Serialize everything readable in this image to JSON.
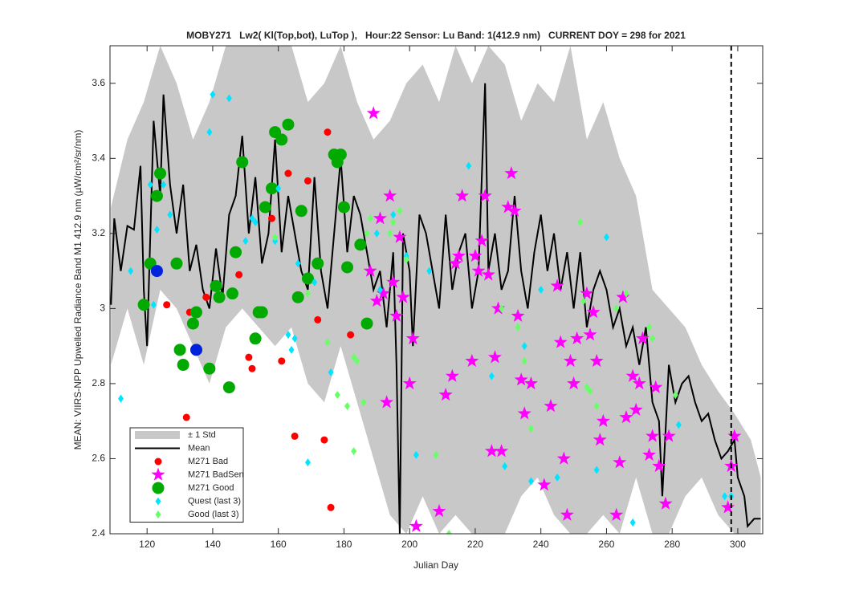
{
  "chart_data": {
    "type": "scatter",
    "title": "MOBY271   Lw2( Kl(Top,bot), LuTop ),   Hour:22 Sensor: Lu Band: 1(412.9 nm)   CURRENT DOY = 298 for 2021",
    "xlabel": "Julian Day",
    "ylabel": "MEAN: VIIRS-NPP Upwelled Radiance Band M1 412.9 nm (µW/cm²/sr/nm)",
    "xlim": [
      108.7,
      307.6
    ],
    "ylim": [
      2.4,
      3.7
    ],
    "xticks": [
      120,
      140,
      160,
      180,
      200,
      220,
      240,
      260,
      280,
      300
    ],
    "yticks": [
      2.4,
      2.6,
      2.8,
      3,
      3.2,
      3.4,
      3.6
    ],
    "vline": 298,
    "series": [
      {
        "name": "± 1 Std",
        "marker": "area",
        "color": "#c8c8c8",
        "x": [
          109,
          114,
          119,
          124,
          129,
          134,
          139,
          144,
          149,
          154,
          159,
          164,
          169,
          174,
          179,
          184,
          189,
          194,
          199,
          204,
          209,
          214,
          219,
          224,
          229,
          234,
          239,
          244,
          249,
          254,
          259,
          264,
          269,
          274,
          279,
          284,
          289,
          294,
          299,
          304,
          307
        ],
        "upper": [
          3.27,
          3.45,
          3.55,
          3.7,
          3.6,
          3.45,
          3.55,
          3.7,
          3.7,
          3.7,
          3.7,
          3.7,
          3.55,
          3.6,
          3.7,
          3.55,
          3.45,
          3.5,
          3.6,
          3.65,
          3.55,
          3.7,
          3.6,
          3.7,
          3.65,
          3.5,
          3.6,
          3.55,
          3.7,
          3.45,
          3.55,
          3.4,
          3.3,
          3.05,
          3.0,
          2.95,
          2.85,
          2.78,
          2.72,
          2.65,
          2.55
        ],
        "lower": [
          2.85,
          3.0,
          2.85,
          3.05,
          3.0,
          2.9,
          2.8,
          2.95,
          3.0,
          2.95,
          2.9,
          2.95,
          2.8,
          2.75,
          2.9,
          2.75,
          2.6,
          2.45,
          2.4,
          2.5,
          2.4,
          2.45,
          2.4,
          2.4,
          2.4,
          2.5,
          2.55,
          2.45,
          2.4,
          2.4,
          2.45,
          2.4,
          2.55,
          2.4,
          2.4,
          2.5,
          2.55,
          2.45,
          2.4,
          2.4,
          2.4
        ]
      },
      {
        "name": "Mean",
        "marker": "line",
        "color": "#000000",
        "x": [
          109,
          110,
          112,
          114,
          116,
          118,
          119,
          120,
          121,
          122,
          124,
          125,
          127,
          129,
          131,
          133,
          135,
          137,
          139,
          141,
          143,
          145,
          147,
          149,
          151,
          153,
          155,
          157,
          159,
          161,
          163,
          165,
          167,
          169,
          171,
          173,
          175,
          177,
          179,
          181,
          183,
          185,
          187,
          189,
          191,
          193,
          195,
          196,
          197,
          198,
          200,
          201,
          203,
          205,
          207,
          209,
          211,
          213,
          215,
          217,
          219,
          221,
          223,
          224,
          226,
          228,
          230,
          232,
          234,
          236,
          238,
          240,
          242,
          244,
          246,
          248,
          250,
          252,
          254,
          256,
          258,
          260,
          262,
          264,
          266,
          268,
          270,
          272,
          274,
          276,
          277,
          279,
          281,
          283,
          285,
          287,
          289,
          291,
          293,
          295,
          297,
          299,
          300,
          302,
          303,
          305,
          307
        ],
        "values": [
          3.01,
          3.24,
          3.1,
          3.22,
          3.21,
          3.38,
          3.05,
          2.9,
          3.2,
          3.5,
          3.3,
          3.57,
          3.33,
          3.2,
          3.33,
          3.1,
          3.17,
          3.05,
          3.0,
          3.16,
          3.03,
          3.25,
          3.3,
          3.46,
          3.2,
          3.35,
          3.12,
          3.2,
          3.45,
          3.15,
          3.3,
          3.2,
          3.1,
          3.05,
          3.35,
          3.1,
          3.0,
          3.2,
          3.4,
          3.15,
          3.3,
          3.25,
          3.15,
          3.05,
          3.1,
          2.95,
          3.15,
          2.85,
          2.4,
          3.2,
          3.1,
          2.9,
          3.25,
          3.2,
          3.1,
          3.0,
          3.25,
          3.05,
          3.15,
          3.2,
          3.0,
          3.1,
          3.6,
          3.1,
          3.2,
          3.05,
          3.1,
          3.3,
          3.1,
          3.0,
          3.15,
          3.25,
          3.1,
          3.2,
          3.05,
          3.15,
          3.0,
          3.15,
          2.95,
          3.05,
          3.1,
          3.05,
          2.95,
          3.0,
          2.9,
          2.95,
          2.85,
          2.95,
          2.75,
          2.7,
          2.5,
          2.85,
          2.75,
          2.8,
          2.82,
          2.75,
          2.7,
          2.72,
          2.65,
          2.6,
          2.62,
          2.65,
          2.55,
          2.5,
          2.42,
          2.44,
          2.44
        ]
      },
      {
        "name": "M271 Bad",
        "marker": "o",
        "color": "#ff0000",
        "x": [
          123,
          126,
          132,
          133,
          138,
          148,
          151,
          152,
          158,
          161,
          163,
          165,
          169,
          172,
          174,
          175,
          176,
          182
        ],
        "values": [
          3.1,
          3.01,
          2.71,
          2.99,
          3.03,
          3.09,
          2.87,
          2.84,
          3.24,
          2.86,
          3.36,
          2.66,
          3.34,
          2.97,
          2.65,
          3.47,
          2.47,
          2.93
        ]
      },
      {
        "name": "M271 BadSen",
        "marker": "*",
        "color": "#ff00ff",
        "x": [
          189,
          188,
          190,
          191,
          192,
          193,
          194,
          195,
          197,
          196,
          198,
          200,
          201,
          202,
          209,
          211,
          213,
          214,
          215,
          216,
          219,
          220,
          221,
          222,
          223,
          224,
          225,
          226,
          227,
          228,
          230,
          231,
          232,
          233,
          234,
          235,
          237,
          241,
          243,
          245,
          246,
          247,
          248,
          249,
          250,
          251,
          254,
          255,
          256,
          257,
          258,
          259,
          263,
          264,
          265,
          266,
          268,
          269,
          270,
          271,
          273,
          274,
          275,
          276,
          278,
          279,
          297,
          298,
          299
        ],
        "values": [
          3.52,
          3.1,
          3.02,
          3.24,
          3.04,
          2.75,
          3.3,
          3.07,
          3.19,
          2.98,
          3.03,
          2.8,
          2.92,
          2.42,
          2.46,
          2.77,
          2.82,
          3.12,
          3.14,
          3.3,
          2.86,
          3.14,
          3.1,
          3.18,
          3.3,
          3.09,
          2.62,
          2.87,
          3.0,
          2.62,
          3.27,
          3.36,
          3.26,
          2.98,
          2.81,
          2.72,
          2.8,
          2.53,
          2.74,
          3.06,
          2.91,
          2.6,
          2.45,
          2.86,
          2.8,
          2.92,
          3.04,
          2.93,
          2.99,
          2.86,
          2.65,
          2.7,
          2.45,
          2.59,
          3.03,
          2.71,
          2.82,
          2.73,
          2.8,
          2.92,
          2.61,
          2.66,
          2.79,
          2.58,
          2.48,
          2.66,
          2.47,
          2.58,
          2.66
        ]
      },
      {
        "name": "M271 Good",
        "marker": "O",
        "color": "#00aa00",
        "x": [
          119,
          121,
          123,
          124,
          129,
          130,
          131,
          134,
          135,
          139,
          141,
          142,
          145,
          146,
          147,
          149,
          153,
          154,
          155,
          156,
          158,
          159,
          161,
          163,
          166,
          167,
          169,
          172,
          177,
          178,
          179,
          180,
          181,
          185,
          187
        ],
        "values": [
          3.01,
          3.12,
          3.3,
          3.36,
          3.12,
          2.89,
          2.85,
          2.96,
          2.99,
          2.84,
          3.06,
          3.03,
          2.79,
          3.04,
          3.15,
          3.39,
          2.92,
          2.99,
          2.99,
          3.27,
          3.32,
          3.47,
          3.45,
          3.49,
          3.03,
          3.26,
          3.08,
          3.12,
          3.41,
          3.39,
          3.41,
          3.27,
          3.11,
          3.17,
          2.96
        ]
      },
      {
        "marker": "O",
        "color": "#0022dd",
        "x": [
          123,
          135
        ],
        "values": [
          3.1,
          2.89
        ]
      },
      {
        "name": "Quest (last 3)",
        "marker": "d",
        "color": "#00e5ff",
        "x": [
          112,
          115,
          121,
          123,
          125,
          127,
          122,
          139,
          140,
          145,
          150,
          152,
          153,
          159,
          160,
          163,
          164,
          165,
          166,
          169,
          171,
          176,
          190,
          191,
          195,
          199,
          202,
          206,
          218,
          225,
          229,
          235,
          237,
          240,
          245,
          257,
          260,
          268,
          282,
          296,
          298
        ],
        "values": [
          2.76,
          3.1,
          3.33,
          3.21,
          3.33,
          3.25,
          3.01,
          3.47,
          3.57,
          3.56,
          3.18,
          3.24,
          3.23,
          3.18,
          3.32,
          2.93,
          2.89,
          2.92,
          3.12,
          2.59,
          3.07,
          2.83,
          3.2,
          3.05,
          3.25,
          3.14,
          2.61,
          3.1,
          3.38,
          2.82,
          2.58,
          2.9,
          2.54,
          3.05,
          2.55,
          2.57,
          3.19,
          2.43,
          2.69,
          2.5,
          2.5
        ]
      },
      {
        "name": "Good (last 3)",
        "marker": "d",
        "color": "#66ff66",
        "x": [
          159,
          169,
          175,
          178,
          181,
          183,
          183,
          184,
          186,
          187,
          188,
          194,
          195,
          197,
          199,
          208,
          212,
          228,
          233,
          235,
          237,
          252,
          253,
          254,
          255,
          257,
          263,
          266,
          273,
          274,
          281
        ],
        "values": [
          3.19,
          3.04,
          2.91,
          2.77,
          2.74,
          2.62,
          2.87,
          2.86,
          2.75,
          3.2,
          3.24,
          3.2,
          3.23,
          3.26,
          3.13,
          2.61,
          2.4,
          3.0,
          2.95,
          2.86,
          2.68,
          3.23,
          3.02,
          2.79,
          2.78,
          2.74,
          3.0,
          3.04,
          2.95,
          2.92,
          2.77
        ]
      }
    ]
  }
}
